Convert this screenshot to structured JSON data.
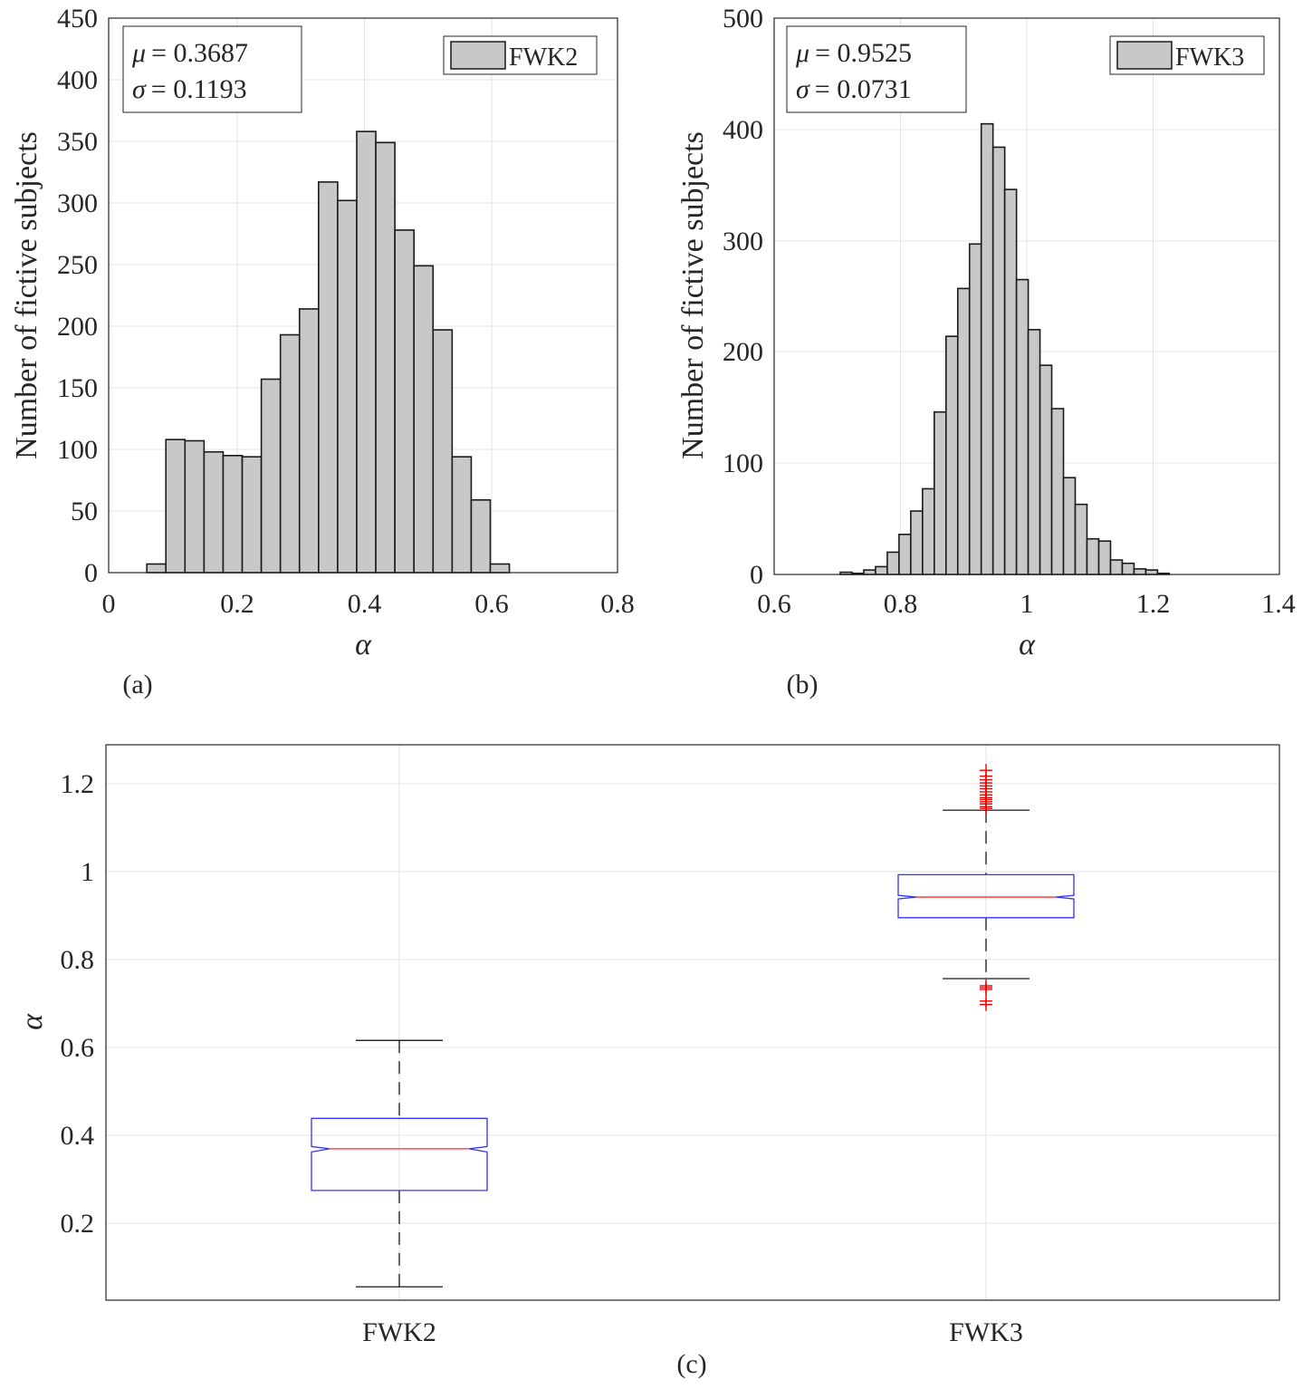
{
  "chart_data": [
    {
      "type": "bar",
      "subtype": "histogram",
      "panel_label": "(a)",
      "xlabel": "α",
      "ylabel": "Number of fictive subjects",
      "xlim": [
        0,
        0.8
      ],
      "ylim": [
        0,
        450
      ],
      "xticks": [
        0,
        0.2,
        0.4,
        0.6,
        0.8
      ],
      "xtick_labels": [
        "0",
        "0.2",
        "0.4",
        "0.6",
        "0.8"
      ],
      "yticks": [
        0,
        50,
        100,
        150,
        200,
        250,
        300,
        350,
        400,
        450
      ],
      "ytick_labels": [
        "0",
        "50",
        "100",
        "150",
        "200",
        "250",
        "300",
        "350",
        "400",
        "450"
      ],
      "grid": true,
      "legend": {
        "label": "FWK2",
        "position": "top-right"
      },
      "stats": {
        "mu_symbol": "μ",
        "mu_text": "= 0.3687",
        "sigma_symbol": "σ",
        "sigma_text": "= 0.1193"
      },
      "bin_edges": [
        0.06,
        0.09,
        0.12,
        0.15,
        0.18,
        0.21,
        0.24,
        0.27,
        0.3,
        0.33,
        0.36,
        0.39,
        0.42,
        0.45,
        0.48,
        0.51,
        0.54,
        0.57,
        0.6,
        0.63
      ],
      "counts": [
        7,
        108,
        107,
        98,
        95,
        94,
        157,
        193,
        214,
        317,
        302,
        358,
        349,
        278,
        249,
        197,
        94,
        59,
        7
      ]
    },
    {
      "type": "bar",
      "subtype": "histogram",
      "panel_label": "(b)",
      "xlabel": "α",
      "ylabel": "Number of fictive subjects",
      "xlim": [
        0.6,
        1.4
      ],
      "ylim": [
        0,
        500
      ],
      "xticks": [
        0.6,
        0.8,
        1.0,
        1.2,
        1.4
      ],
      "xtick_labels": [
        "0.6",
        "0.8",
        "1",
        "1.2",
        "1.4"
      ],
      "yticks": [
        0,
        100,
        200,
        300,
        400,
        500
      ],
      "ytick_labels": [
        "0",
        "100",
        "200",
        "300",
        "400",
        "500"
      ],
      "grid": true,
      "legend": {
        "label": "FWK3",
        "position": "top-right"
      },
      "stats": {
        "mu_symbol": "μ",
        "mu_text": "= 0.9525",
        "sigma_symbol": "σ",
        "sigma_text": "= 0.0731"
      },
      "bin_edges": [
        0.7047,
        0.7233,
        0.7419,
        0.7605,
        0.7791,
        0.7977,
        0.8163,
        0.8349,
        0.8535,
        0.8721,
        0.8907,
        0.9093,
        0.9279,
        0.9465,
        0.9651,
        0.9837,
        1.0023,
        1.0209,
        1.0395,
        1.0581,
        1.0767,
        1.0953,
        1.114,
        1.1326,
        1.1512,
        1.1698,
        1.1884,
        1.207,
        1.2256,
        1.2442
      ],
      "counts": [
        2,
        1,
        4,
        7,
        20,
        36,
        57,
        77,
        146,
        214,
        257,
        297,
        405,
        384,
        346,
        265,
        220,
        188,
        149,
        87,
        63,
        32,
        30,
        13,
        10,
        5,
        4,
        1,
        0
      ]
    },
    {
      "type": "boxplot",
      "panel_label": "(c)",
      "ylabel": "α",
      "xlabel": "",
      "ylim": [
        0.05,
        1.29
      ],
      "yticks": [
        0.2,
        0.4,
        0.6,
        0.8,
        1.0,
        1.2
      ],
      "ytick_labels": [
        "0.2",
        "0.4",
        "0.6",
        "0.8",
        "1",
        "1.2"
      ],
      "categories": [
        "FWK2",
        "FWK3"
      ],
      "grid": true,
      "notched": true,
      "boxes": [
        {
          "name": "FWK2",
          "whisker_low": 0.08,
          "q1": 0.295,
          "median": 0.388,
          "q3": 0.456,
          "whisker_high": 0.63,
          "notch_low": 0.381,
          "notch_high": 0.393,
          "outliers": []
        },
        {
          "name": "FWK3",
          "whisker_low": 0.768,
          "q1": 0.904,
          "median": 0.95,
          "q3": 1.0,
          "whisker_high": 1.144,
          "notch_low": 0.946,
          "notch_high": 0.954,
          "outliers": [
            0.71,
            0.718,
            0.744,
            0.748,
            0.752,
            1.148,
            1.152,
            1.158,
            1.163,
            1.168,
            1.172,
            1.178,
            1.185,
            1.192,
            1.198,
            1.205,
            1.212,
            1.22,
            1.233
          ]
        }
      ]
    }
  ],
  "colors": {
    "bar_fill": "#c8c8c8",
    "bar_edge": "#1a1a1a",
    "grid": "#e3e3e3",
    "axis": "#262626",
    "box": "#3333ff",
    "median": "#ff2a2a",
    "whisker": "#000000",
    "outlier": "#ee0000"
  }
}
